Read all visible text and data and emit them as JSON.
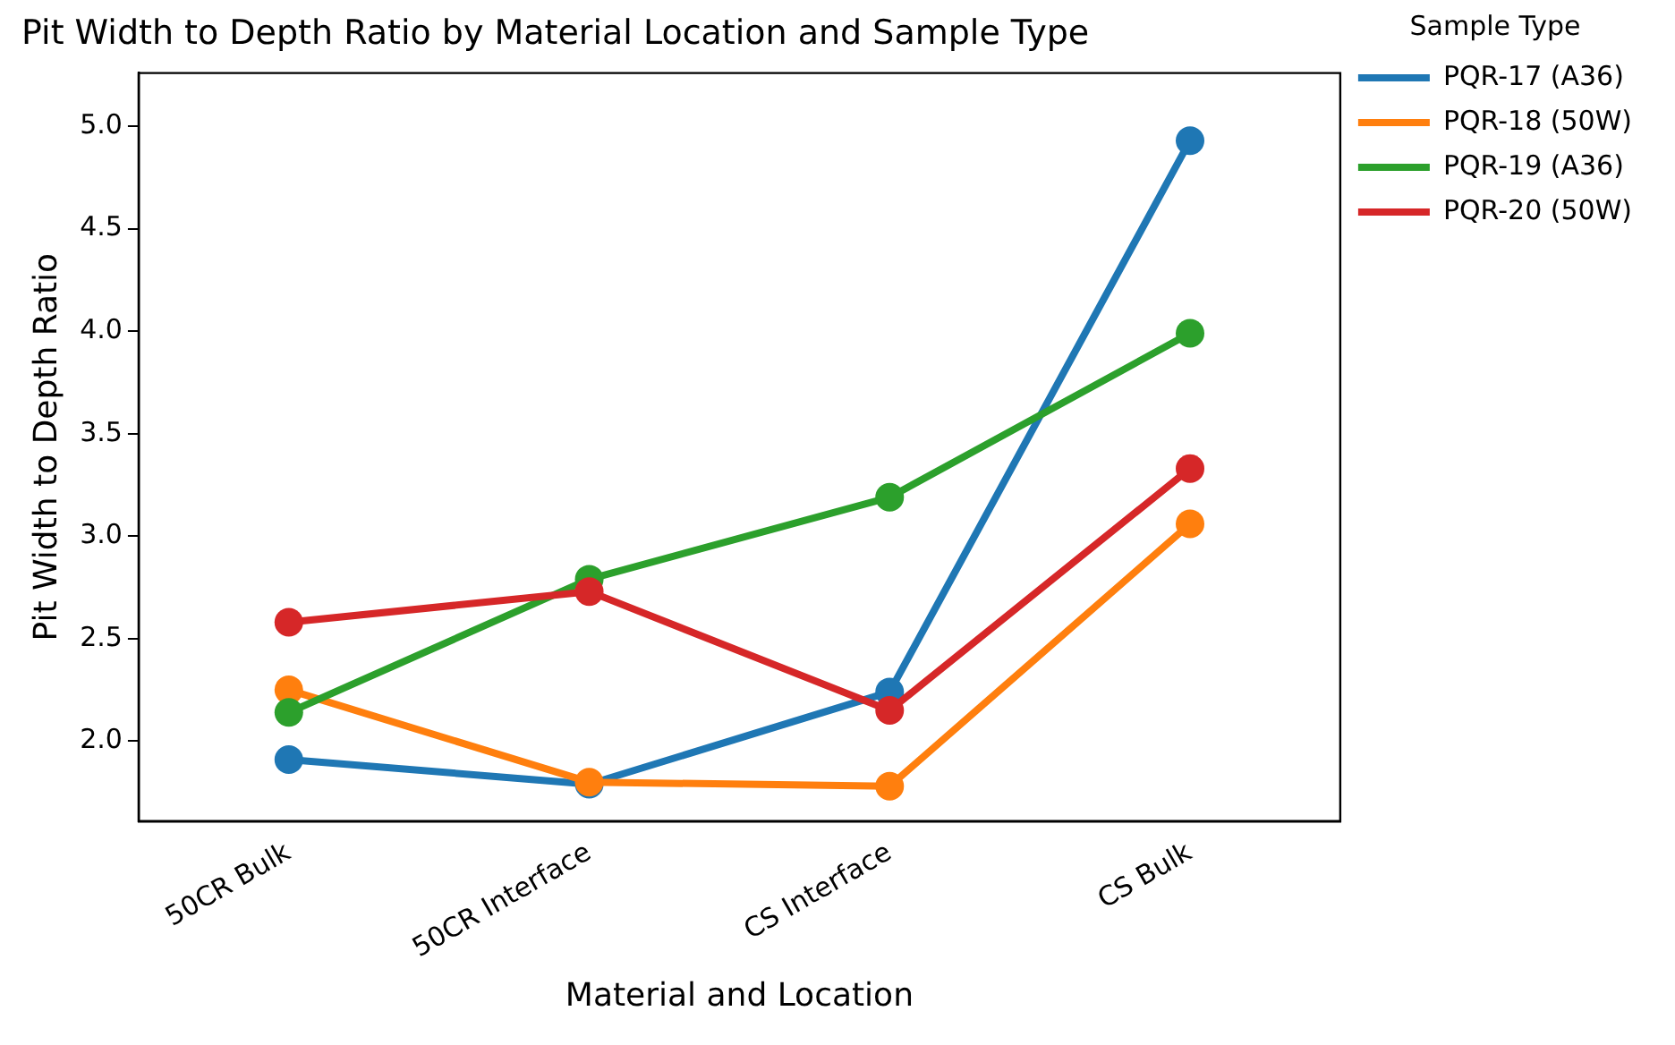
{
  "chart_data": {
    "type": "line",
    "title": "Pit Width to Depth Ratio by Material Location and Sample Type",
    "xlabel": "Material and Location",
    "ylabel": "Pit Width to Depth Ratio",
    "legend_title": "Sample Type",
    "categories": [
      "50CR Bulk",
      "50CR Interface",
      "CS Interface",
      "CS Bulk"
    ],
    "series": [
      {
        "name": "PQR-17 (A36)",
        "color": "#1f77b4",
        "values": [
          1.91,
          1.79,
          2.24,
          4.93
        ]
      },
      {
        "name": "PQR-18 (50W)",
        "color": "#ff7f0e",
        "values": [
          2.25,
          1.8,
          1.78,
          3.06
        ]
      },
      {
        "name": "PQR-19 (A36)",
        "color": "#2ca02c",
        "values": [
          2.14,
          2.79,
          3.19,
          3.99
        ]
      },
      {
        "name": "PQR-20 (50W)",
        "color": "#d62728",
        "values": [
          2.58,
          2.73,
          2.15,
          3.33
        ]
      }
    ],
    "ylim": [
      1.61,
      5.26
    ],
    "yticks": [
      {
        "value": 2,
        "label": "2.0"
      },
      {
        "value": 2.5,
        "label": "2.5"
      },
      {
        "value": 3,
        "label": "3.0"
      },
      {
        "value": 3.5,
        "label": "3.5"
      },
      {
        "value": 4,
        "label": "4.0"
      },
      {
        "value": 4.5,
        "label": "4.5"
      },
      {
        "value": 5,
        "label": "5.0"
      }
    ],
    "grid": false,
    "legend": "top right",
    "marker": "circle",
    "line_style": "solid"
  }
}
